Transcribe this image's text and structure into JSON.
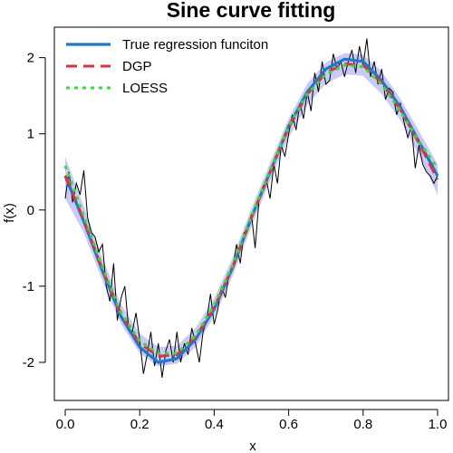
{
  "chart_data": {
    "type": "line",
    "title": "Sine curve fitting",
    "xlabel": "x",
    "ylabel": "f(x)",
    "xlim": [
      0,
      1
    ],
    "ylim": [
      -2.5,
      2.4
    ],
    "grid": false,
    "legend_position": "top-left",
    "x_ticks": [
      "0.0",
      "0.2",
      "0.4",
      "0.6",
      "0.8",
      "1.0"
    ],
    "x_tick_values": [
      0,
      0.2,
      0.4,
      0.6,
      0.8,
      1.0
    ],
    "y_ticks": [
      "-2",
      "-1",
      "0",
      "1",
      "2"
    ],
    "y_tick_values": [
      -2,
      -1,
      0,
      1,
      2
    ],
    "series": [
      {
        "name": "True regression funciton",
        "color": "#1f78c8",
        "style": "solid",
        "x": [
          0,
          0.05,
          0.1,
          0.15,
          0.2,
          0.25,
          0.3,
          0.35,
          0.4,
          0.45,
          0.5,
          0.55,
          0.6,
          0.65,
          0.7,
          0.75,
          0.8,
          0.85,
          0.9,
          0.95,
          1.0
        ],
        "y": [
          0.45,
          -0.15,
          -0.8,
          -1.4,
          -1.8,
          -2.0,
          -1.95,
          -1.7,
          -1.3,
          -0.75,
          -0.1,
          0.5,
          1.1,
          1.55,
          1.85,
          1.98,
          1.95,
          1.7,
          1.35,
          0.9,
          0.45
        ]
      },
      {
        "name": "DGP",
        "color": "#d6334a",
        "style": "dashed",
        "x": [
          0,
          0.05,
          0.1,
          0.15,
          0.2,
          0.25,
          0.3,
          0.35,
          0.4,
          0.45,
          0.5,
          0.55,
          0.6,
          0.65,
          0.7,
          0.75,
          0.8,
          0.85,
          0.9,
          0.95,
          1.0
        ],
        "y": [
          0.45,
          -0.13,
          -0.78,
          -1.37,
          -1.75,
          -1.92,
          -1.9,
          -1.67,
          -1.28,
          -0.74,
          -0.1,
          0.5,
          1.08,
          1.52,
          1.8,
          1.92,
          1.9,
          1.67,
          1.32,
          0.88,
          0.4
        ]
      },
      {
        "name": "LOESS",
        "color": "#33dd33",
        "style": "dotted",
        "x": [
          0,
          0.05,
          0.1,
          0.15,
          0.2,
          0.25,
          0.3,
          0.35,
          0.4,
          0.45,
          0.5,
          0.55,
          0.6,
          0.65,
          0.7,
          0.75,
          0.8,
          0.85,
          0.9,
          0.95,
          1.0
        ],
        "y": [
          0.58,
          -0.08,
          -0.75,
          -1.35,
          -1.72,
          -1.88,
          -1.88,
          -1.65,
          -1.25,
          -0.72,
          -0.08,
          0.52,
          1.1,
          1.52,
          1.78,
          1.9,
          1.88,
          1.65,
          1.3,
          0.9,
          0.55
        ]
      }
    ],
    "band": {
      "color": "#b8b8f5",
      "x": [
        0,
        0.05,
        0.1,
        0.15,
        0.2,
        0.25,
        0.3,
        0.35,
        0.4,
        0.45,
        0.5,
        0.55,
        0.6,
        0.65,
        0.7,
        0.75,
        0.8,
        0.85,
        0.9,
        0.95,
        1.0
      ],
      "lower": [
        0.15,
        -0.3,
        -0.93,
        -1.5,
        -1.88,
        -2.05,
        -2.02,
        -1.8,
        -1.4,
        -0.86,
        -0.22,
        0.38,
        0.95,
        1.38,
        1.66,
        1.78,
        1.76,
        1.52,
        1.18,
        0.72,
        0.2
      ],
      "upper": [
        0.7,
        0.05,
        -0.63,
        -1.24,
        -1.62,
        -1.8,
        -1.78,
        -1.55,
        -1.16,
        -0.62,
        0.02,
        0.62,
        1.2,
        1.66,
        1.94,
        2.06,
        2.04,
        1.82,
        1.46,
        1.04,
        0.6
      ]
    },
    "observations": {
      "color": "#000000",
      "x": [
        0.0,
        0.01,
        0.02,
        0.03,
        0.04,
        0.05,
        0.06,
        0.07,
        0.08,
        0.09,
        0.1,
        0.11,
        0.12,
        0.13,
        0.14,
        0.15,
        0.16,
        0.17,
        0.18,
        0.19,
        0.2,
        0.21,
        0.22,
        0.23,
        0.24,
        0.25,
        0.26,
        0.27,
        0.28,
        0.29,
        0.3,
        0.31,
        0.32,
        0.33,
        0.34,
        0.35,
        0.36,
        0.37,
        0.38,
        0.39,
        0.4,
        0.41,
        0.42,
        0.43,
        0.44,
        0.45,
        0.46,
        0.47,
        0.48,
        0.49,
        0.5,
        0.51,
        0.52,
        0.53,
        0.54,
        0.55,
        0.56,
        0.57,
        0.58,
        0.59,
        0.6,
        0.61,
        0.62,
        0.63,
        0.64,
        0.65,
        0.66,
        0.67,
        0.68,
        0.69,
        0.7,
        0.71,
        0.72,
        0.73,
        0.74,
        0.75,
        0.76,
        0.77,
        0.78,
        0.79,
        0.8,
        0.81,
        0.82,
        0.83,
        0.84,
        0.85,
        0.86,
        0.87,
        0.88,
        0.89,
        0.9,
        0.91,
        0.92,
        0.93,
        0.94,
        0.95,
        0.96,
        0.97,
        0.98,
        0.99,
        1.0
      ],
      "y": [
        0.15,
        0.5,
        0.1,
        0.35,
        0.2,
        0.52,
        -0.1,
        -0.3,
        -0.35,
        -0.55,
        -0.45,
        -1.0,
        -1.2,
        -0.7,
        -1.45,
        -1.15,
        -1.0,
        -1.55,
        -1.6,
        -1.35,
        -1.7,
        -2.15,
        -1.9,
        -1.6,
        -2.05,
        -1.75,
        -2.2,
        -1.85,
        -1.7,
        -2.0,
        -1.6,
        -2.0,
        -1.75,
        -1.9,
        -1.55,
        -1.75,
        -2.0,
        -1.6,
        -1.45,
        -1.1,
        -1.5,
        -1.3,
        -1.0,
        -1.15,
        -0.85,
        -0.75,
        -0.45,
        -0.7,
        -0.3,
        -0.25,
        -0.05,
        -0.5,
        0.1,
        0.3,
        0.4,
        0.15,
        0.6,
        0.35,
        0.85,
        0.7,
        1.0,
        1.25,
        1.05,
        1.4,
        1.2,
        1.55,
        1.3,
        1.8,
        1.55,
        1.95,
        1.65,
        1.7,
        2.05,
        1.85,
        1.95,
        1.75,
        1.95,
        2.1,
        1.8,
        2.15,
        1.9,
        2.25,
        1.75,
        1.95,
        1.65,
        1.85,
        1.45,
        1.6,
        1.55,
        1.25,
        1.4,
        1.15,
        0.95,
        1.1,
        0.55,
        0.85,
        0.6,
        0.5,
        0.45,
        0.35,
        0.45
      ]
    }
  }
}
